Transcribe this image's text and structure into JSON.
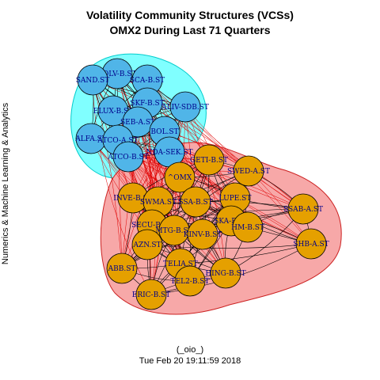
{
  "title": {
    "line1": "Volatility Community Structures (VCSs)",
    "line2": "OMX2 During Last 71 Quarters"
  },
  "side_label": "Numerics & Machine Learning & Analytics",
  "footer": {
    "line1": "(_oio_)",
    "line2": "Tue Feb 20 19:11:59 2018"
  },
  "colors": {
    "community1_fill": "#50b5e8",
    "community1_hull": "#80ffff",
    "community1_hull_stroke": "#00cccc",
    "community2_fill": "#e5a000",
    "community2_hull": "#f7a8a8",
    "community2_hull_stroke": "#cc2222",
    "label": "#00008b",
    "intra_edge": "#000000",
    "inter_edge": "#e00000"
  },
  "communities": [
    {
      "id": 1,
      "nodes": [
        "VOLV-B.ST",
        "SAND.ST",
        "SCA-B.ST",
        "SKF-B.ST",
        "ELUX-B.ST",
        "ALIV-SDB.ST",
        "SEB-A.ST",
        "BOL.ST",
        "ALFA.ST",
        "ATCO-A.ST",
        "ATCO-B.ST",
        "NDA-SEK.ST"
      ]
    },
    {
      "id": 2,
      "nodes": [
        "GETI-B.ST",
        "^OMX",
        "SWED-A.ST",
        "INVE-B.ST",
        "SWMA.ST",
        "SSA-B.ST",
        "LUPE.ST",
        "SSAB-A.ST",
        "SECU-B.ST",
        "SKA-B.ST",
        "HM-B.ST",
        "MTG-B.ST",
        "KINV-B.ST",
        "AZN.ST",
        "SHB-A.ST",
        "ABB.ST",
        "TELIA.ST",
        "HING-B.ST",
        "TEL2-B.ST",
        "ERIC-B.ST"
      ]
    }
  ]
}
